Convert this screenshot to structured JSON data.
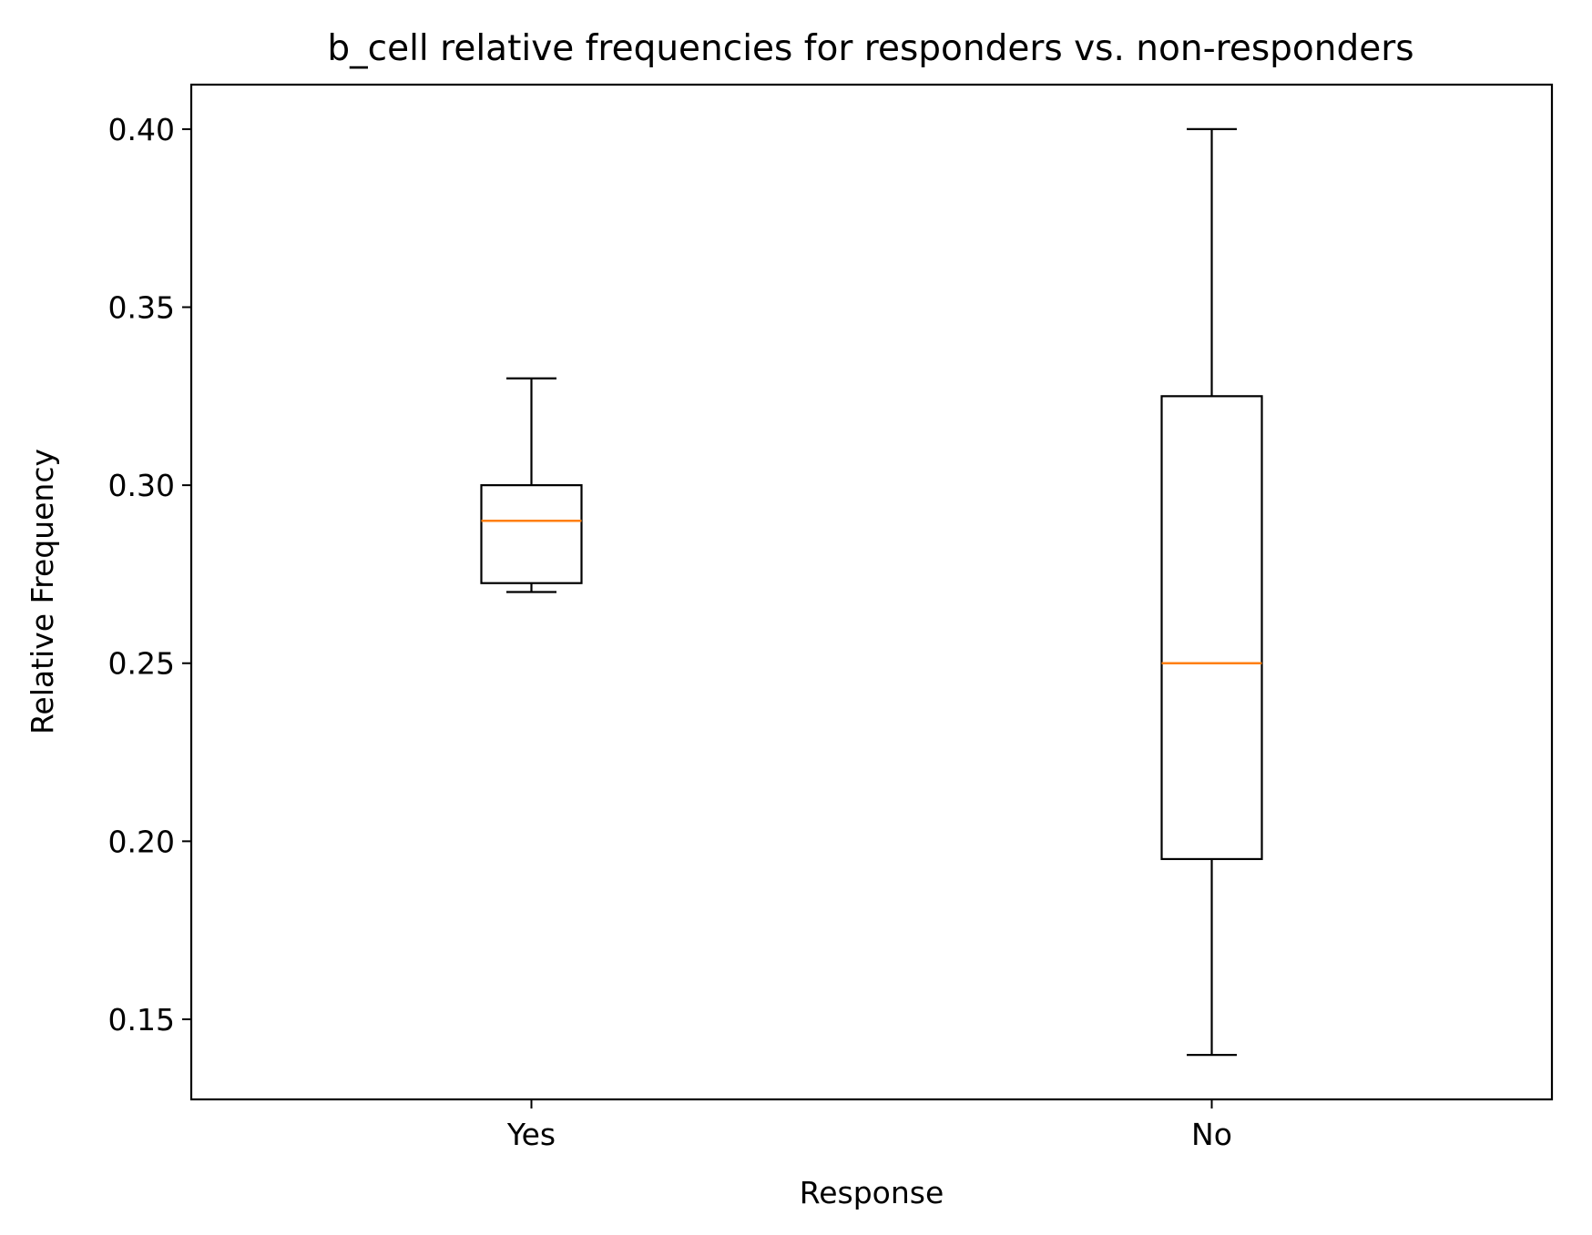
{
  "chart_data": {
    "type": "boxplot",
    "title": "b_cell relative frequencies for responders vs. non-responders",
    "xlabel": "Response",
    "ylabel": "Relative Frequency",
    "categories": [
      "Yes",
      "No"
    ],
    "boxes": [
      {
        "category": "Yes",
        "whisker_low": 0.27,
        "q1": 0.2725,
        "median": 0.29,
        "q3": 0.3,
        "whisker_high": 0.33
      },
      {
        "category": "No",
        "whisker_low": 0.14,
        "q1": 0.195,
        "median": 0.25,
        "q3": 0.325,
        "whisker_high": 0.4
      }
    ],
    "ylim": [
      0.1275,
      0.4125
    ],
    "yticks": [
      0.15,
      0.2,
      0.25,
      0.3,
      0.35,
      0.4
    ],
    "ytick_labels": [
      "0.15",
      "0.20",
      "0.25",
      "0.30",
      "0.35",
      "0.40"
    ],
    "grid": false,
    "colors": {
      "box": "#000000",
      "median": "#ff7f0e",
      "background": "#ffffff"
    }
  }
}
